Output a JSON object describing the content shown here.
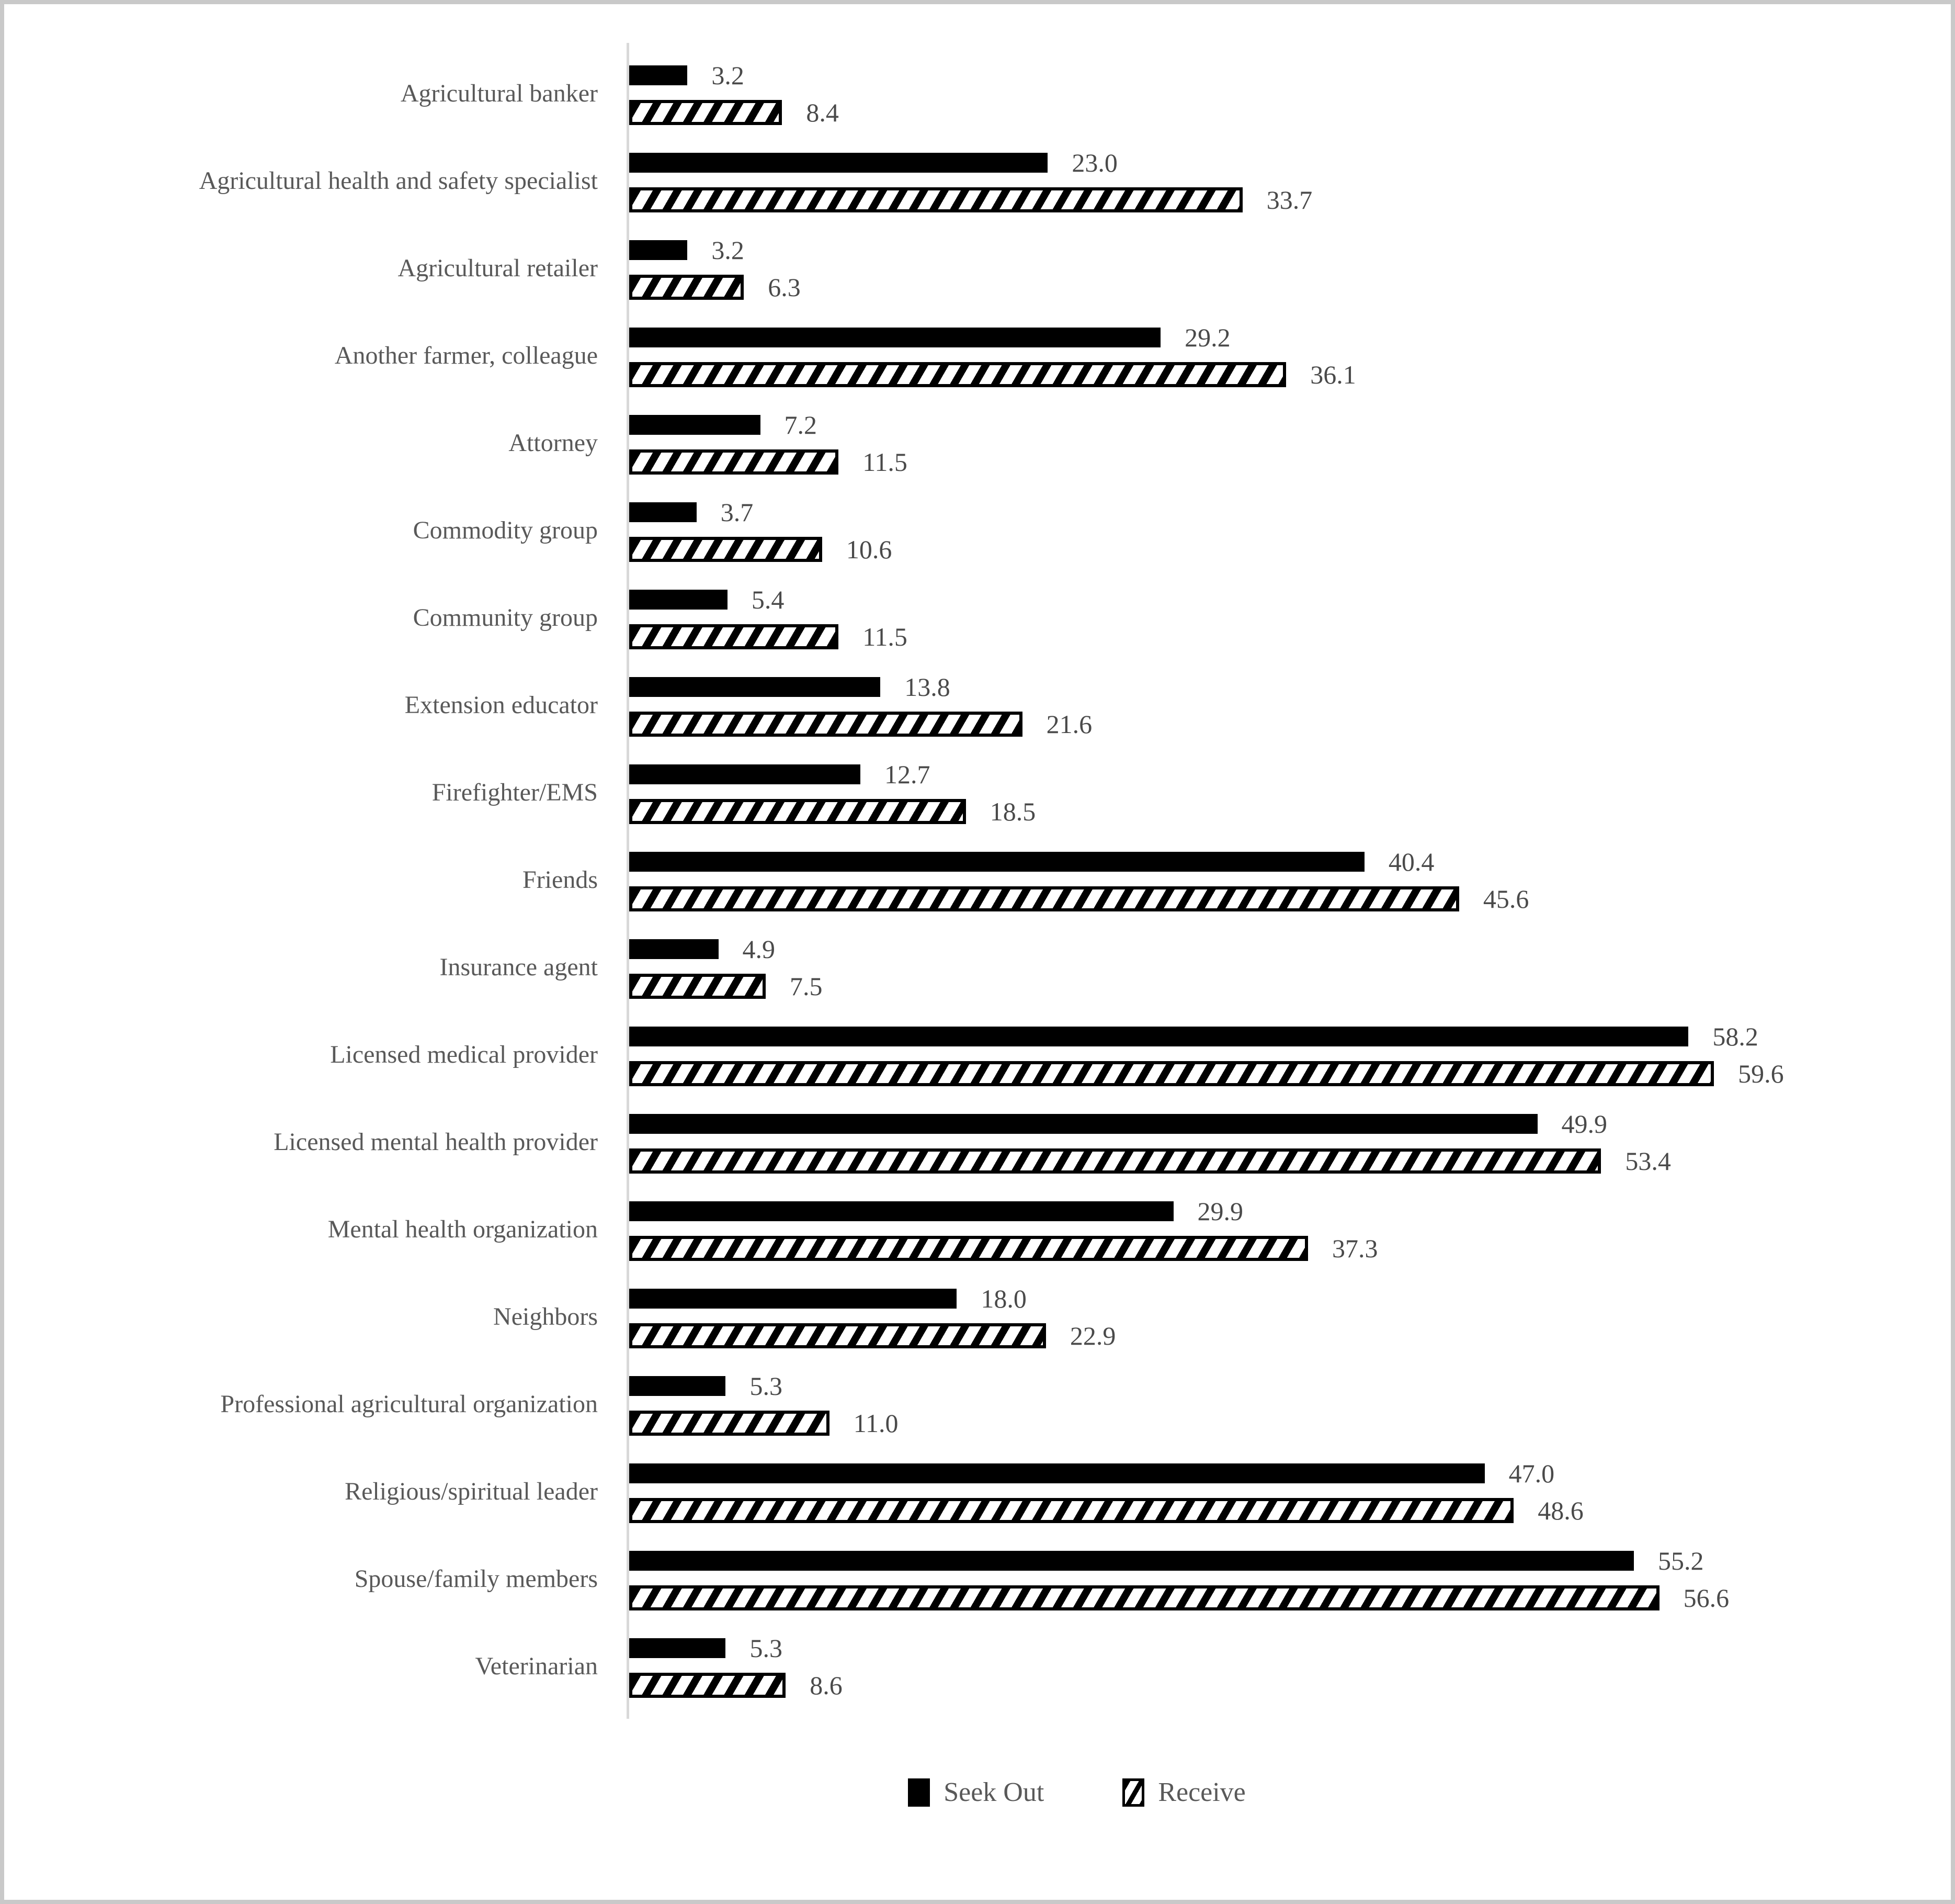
{
  "chart_data": {
    "type": "bar",
    "orientation": "horizontal",
    "title": "",
    "xlabel": "",
    "ylabel": "",
    "xlim": [
      0,
      71
    ],
    "grid": false,
    "legend_position": "bottom",
    "value_label_decimals": 1,
    "categories": [
      "Agricultural banker",
      "Agricultural health and safety specialist",
      "Agricultural retailer",
      "Another farmer, colleague",
      "Attorney",
      "Commodity group",
      "Community group",
      "Extension educator",
      "Firefighter/EMS",
      "Friends",
      "Insurance agent",
      "Licensed medical provider",
      "Licensed mental health provider",
      "Mental health organization",
      "Neighbors",
      "Professional agricultural organization",
      "Religious/spiritual leader",
      "Spouse/family members",
      "Veterinarian"
    ],
    "series": [
      {
        "name": "Seek Out",
        "style": "solid-black",
        "values": [
          3.2,
          23.0,
          3.2,
          29.2,
          7.2,
          3.7,
          5.4,
          13.8,
          12.7,
          40.4,
          4.9,
          58.2,
          49.9,
          29.9,
          18.0,
          5.3,
          47.0,
          55.2,
          5.3
        ]
      },
      {
        "name": "Receive",
        "style": "diagonal-stripes",
        "values": [
          8.4,
          33.7,
          6.3,
          36.1,
          11.5,
          10.6,
          11.5,
          21.6,
          18.5,
          45.6,
          7.5,
          59.6,
          53.4,
          37.3,
          22.9,
          11.0,
          48.6,
          56.6,
          8.6
        ]
      }
    ],
    "colors": {
      "bar_fill": "#000000",
      "stripe_background": "#ffffff",
      "axis_line": "#d9d9d9",
      "category_text": "#595959",
      "value_text": "#4a4a4a",
      "frame_border": "#c9c9c9"
    }
  },
  "legend": {
    "items": [
      {
        "label": "Seek Out",
        "swatch": "solid-black-square"
      },
      {
        "label": "Receive",
        "swatch": "diagonal-stripe-square"
      }
    ]
  }
}
